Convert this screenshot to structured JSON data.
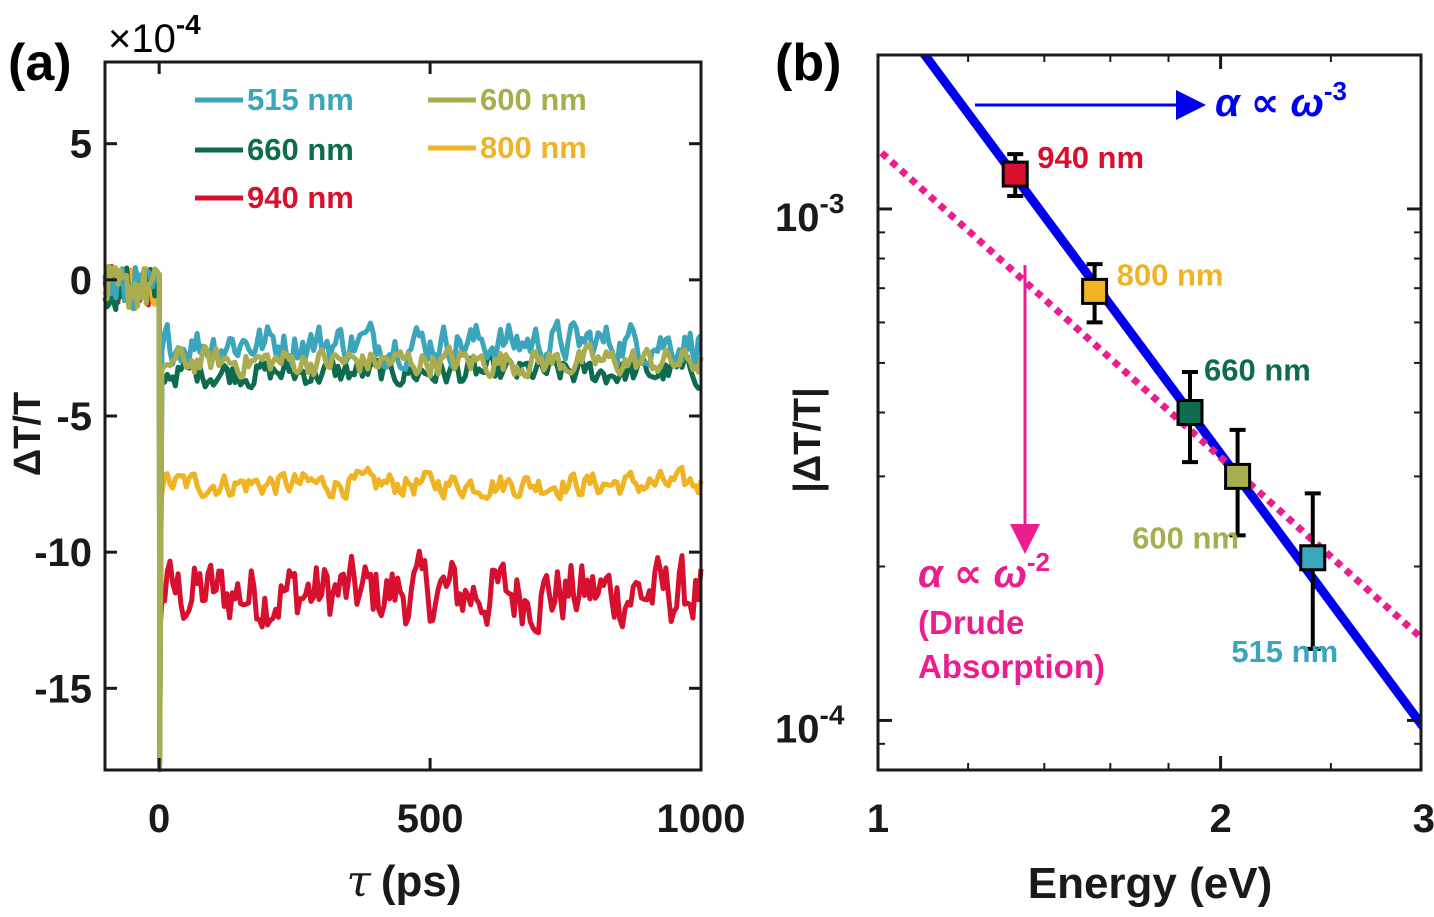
{
  "colors": {
    "c515": "#3AA5BB",
    "c600": "#A9AD4F",
    "c660": "#0E6B4F",
    "c800": "#F0B323",
    "c940": "#D6102E",
    "fit_blue": "#0000EE",
    "drude_pink": "#EC1E8F",
    "axis": "#1a1a1a"
  },
  "chart_data": [
    {
      "panel": "(a)",
      "type": "line",
      "title": "",
      "xlabel_symbol": "τ",
      "xlabel": "(ps)",
      "ylabel": "ΔT/T",
      "yscale_label": "×10",
      "yscale_exp": "-4",
      "xlim": [
        -100,
        1000
      ],
      "ylim": [
        -18,
        8
      ],
      "xticks": [
        0,
        500,
        1000
      ],
      "xtick_labels": [
        "0",
        "500",
        "1000"
      ],
      "yticks": [
        5,
        0,
        -5,
        -10,
        -15
      ],
      "ytick_labels": [
        "5",
        "0",
        "-5",
        "-10",
        "-15"
      ],
      "legend_position": "top",
      "series": [
        {
          "name": "515 nm",
          "color_key": "c515",
          "baseline": -2.3,
          "noise_amp": 0.65,
          "dip": -17.5
        },
        {
          "name": "660 nm",
          "color_key": "c660",
          "baseline": -3.4,
          "noise_amp": 0.45,
          "dip": -17.8
        },
        {
          "name": "940 nm",
          "color_key": "c940",
          "baseline": -11.5,
          "noise_amp": 1.1,
          "dip": -13.0
        },
        {
          "name": "600 nm",
          "color_key": "c600",
          "baseline": -3.0,
          "noise_amp": 0.45,
          "dip": -18.0
        },
        {
          "name": "800 nm",
          "color_key": "c800",
          "baseline": -7.5,
          "noise_amp": 0.4,
          "dip": -8.8
        }
      ]
    },
    {
      "panel": "(b)",
      "type": "scatter",
      "title": "",
      "xlabel": "Energy (eV)",
      "ylabel": "|ΔT/T|",
      "xscale": "log",
      "yscale": "log",
      "xlim": [
        1,
        3
      ],
      "ylim": [
        8e-05,
        0.002
      ],
      "xticks": [
        1,
        2,
        3
      ],
      "xtick_labels": [
        "1",
        "2",
        "3"
      ],
      "ytick_labels": [
        {
          "base": "10",
          "exp": "-3",
          "value": 0.001
        },
        {
          "base": "10",
          "exp": "-4",
          "value": 0.0001
        }
      ],
      "points": [
        {
          "label": "940 nm",
          "energy": 1.32,
          "value": 0.00117,
          "err_lo": 0.00011,
          "err_hi": 0.00011,
          "color_key": "c940",
          "label_pos": "right"
        },
        {
          "label": "800 nm",
          "energy": 1.55,
          "value": 0.00069,
          "err_lo": 9e-05,
          "err_hi": 9e-05,
          "color_key": "c800",
          "label_pos": "right"
        },
        {
          "label": "660 nm",
          "energy": 1.88,
          "value": 0.0004,
          "err_lo": 8e-05,
          "err_hi": 8e-05,
          "color_key": "c660",
          "label_pos": "upper-right"
        },
        {
          "label": "600 nm",
          "energy": 2.07,
          "value": 0.0003,
          "err_lo": 7e-05,
          "err_hi": 7e-05,
          "color_key": "c600",
          "label_pos": "lower-left"
        },
        {
          "label": "515 nm",
          "energy": 2.41,
          "value": 0.000208,
          "err_lo": 7e-05,
          "err_hi": 7e-05,
          "color_key": "c515",
          "label_pos": "below"
        }
      ],
      "fits": [
        {
          "name": "α ∝ ω^-3",
          "exponent": -3,
          "anchor_energy": 1.88,
          "anchor_value": 0.0004,
          "color_key": "fit_blue",
          "style": "solid"
        },
        {
          "name": "α ∝ ω^-2",
          "exponent": -2,
          "anchor_energy": 2.2,
          "anchor_value": 0.00027,
          "color_key": "drude_pink",
          "style": "dotted"
        }
      ],
      "annotations": {
        "blue_prefix": "α ∝ ω",
        "blue_exp": "-3",
        "pink_prefix": "α ∝ ω",
        "pink_exp": "-2",
        "pink_line1": "(Drude",
        "pink_line2": "Absorption)"
      }
    }
  ]
}
